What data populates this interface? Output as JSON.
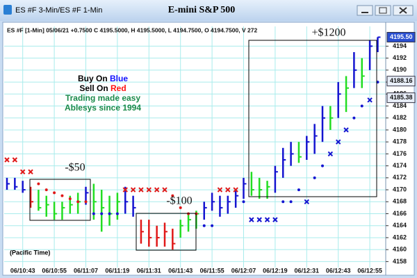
{
  "window_title": "ES #F 3-Min/ES #F 1-Min",
  "chart_data": {
    "type": "ohlc",
    "title": "E-mini S&P 500",
    "info": "ES #F [1-Min] 05/06/21 +0.7500 C 4195.5000, H 4195.5000, L 4194.7500, O 4194.7500, V 272",
    "time_zone": "(Pacific Time)",
    "legend_lines": [
      {
        "text": "Buy On",
        "highlight": "Blue",
        "color": "#1010ff"
      },
      {
        "text": "Sell On",
        "highlight": "Red",
        "color": "#ff1010"
      },
      {
        "text": "Trading made easy",
        "color": "#1a8a4a"
      },
      {
        "text": "Ablesys since 1994",
        "color": "#1a8a4a"
      }
    ],
    "annotations": [
      "-$50",
      "-$100",
      "+$1200"
    ],
    "categories": [
      null,
      null,
      "06/10:43",
      null,
      null,
      null,
      "06/10:55",
      null,
      null,
      null,
      "06/11:07",
      null,
      null,
      null,
      "06/11:19",
      null,
      null,
      null,
      "06/11:31",
      null,
      null,
      null,
      "06/11:43",
      null,
      null,
      null,
      "06/11:55",
      null,
      null,
      null,
      "06/12:07",
      null,
      null,
      null,
      "06/12:19",
      null,
      null,
      null,
      "06/12:31",
      null,
      null,
      null,
      "06/12:43",
      null,
      null,
      null,
      "06/12:55",
      null
    ],
    "high": [
      4172,
      4172,
      4171.5,
      4170.5,
      4170,
      4169,
      4168,
      4168,
      4169,
      4169.5,
      4170.5,
      4171,
      4170,
      4169,
      4169.5,
      4170.5,
      4169,
      4165,
      4165,
      4164,
      4164.5,
      4163.5,
      4165,
      4166,
      4166.5,
      4168,
      4169.5,
      4169,
      4169,
      4170,
      4172,
      4173,
      4172,
      4171.5,
      4174,
      4177,
      4178,
      4178,
      4179,
      4181,
      4184,
      4184,
      4188,
      4189,
      4193,
      4192,
      4195,
      4195.5
    ],
    "low": [
      4170,
      4170,
      4169.5,
      4167,
      4166.5,
      4165.5,
      4165,
      4165,
      4166,
      4166,
      4167.5,
      4165,
      4163,
      4164,
      4165,
      4166,
      4165.5,
      4161,
      4160.5,
      4160.5,
      4160.5,
      4160,
      4162,
      4163,
      4163.5,
      4165,
      4166.5,
      4165.5,
      4166,
      4167,
      4168.5,
      4169,
      4168.5,
      4168.5,
      4169.5,
      4172,
      4174,
      4174.5,
      4175,
      4176,
      4178,
      4180,
      4182,
      4183,
      4187,
      4187,
      4190,
      4193
    ],
    "close": [
      4171,
      4170.5,
      4170,
      4168,
      4167,
      4167.5,
      4166,
      4167,
      4167.5,
      4168,
      4169.5,
      4168,
      4167,
      4166,
      4168,
      4168,
      4167,
      4163,
      4162,
      4162,
      4163,
      4161,
      4164,
      4165,
      4166,
      4167,
      4168,
      4167,
      4168,
      4169,
      4171,
      4170,
      4170,
      4170.5,
      4173,
      4175,
      4176,
      4175.5,
      4178,
      4179,
      4182,
      4182,
      4186,
      4187,
      4190,
      4189,
      4194,
      4195.5
    ],
    "signal": [
      "blue",
      "blue",
      "blue",
      "red",
      "green",
      "green",
      "green",
      "green",
      "green",
      "green",
      "blue",
      "green",
      "green",
      "green",
      "green",
      "blue",
      "blue",
      "red",
      "red",
      "red",
      "red",
      "red",
      "green",
      "green",
      "green",
      "blue",
      "blue",
      "blue",
      "blue",
      "blue",
      "blue",
      "green",
      "green",
      "green",
      "blue",
      "blue",
      "blue",
      "green",
      "blue",
      "blue",
      "blue",
      "green",
      "blue",
      "green",
      "blue",
      "green",
      "blue",
      "blue"
    ],
    "stops": [
      4175,
      4175,
      4173,
      4173,
      4171,
      4170,
      4169.5,
      4169,
      4168.5,
      4168,
      4168,
      4166,
      4166,
      4166,
      4166,
      4170,
      4170,
      4170,
      4170,
      4170,
      4170,
      4169,
      4167,
      4166,
      4166,
      4164,
      4164,
      4170,
      4170,
      4170,
      4168,
      4165,
      4165,
      4165,
      4165,
      4168,
      4168,
      4170,
      4168,
      4172,
      4174,
      4176,
      4178,
      4180,
      4182,
      4184,
      4185,
      4188
    ],
    "stop_marks": [
      "red-x",
      "red-x",
      "red-x",
      "red-x",
      "red-dot",
      "red-dot",
      "red-dot",
      "red-dot",
      "red-dot",
      "red-dot",
      "red-dot",
      "blue-dot",
      "blue-dot",
      "blue-dot",
      "blue-dot",
      "red-x",
      "red-x",
      "red-x",
      "red-x",
      "red-x",
      "red-x",
      "red-dot",
      "red-dot",
      "red-dot",
      "red-dot",
      "blue-dot",
      "blue-dot",
      "red-x",
      "red-x",
      "red-x",
      "blue-dot",
      "blue-x",
      "blue-x",
      "blue-x",
      "blue-x",
      "blue-dot",
      "blue-dot",
      "blue-dot",
      "blue-x",
      "blue-dot",
      "blue-dot",
      "blue-x",
      "blue-x",
      "blue-x",
      "blue-dot",
      "blue-dot",
      "blue-x",
      "blue-dot"
    ],
    "colors": {
      "blue": "#1414d0",
      "green": "#22dd22",
      "red": "#e01818"
    },
    "price_tags": [
      {
        "value": 4195.5,
        "label": "4195.50"
      },
      {
        "value": 4188.16,
        "label": "4188.16"
      },
      {
        "value": 4185.38,
        "label": "4185.38"
      }
    ],
    "ylim": [
      4157,
      4197.3
    ],
    "yticks": [
      4158,
      4160,
      4162,
      4164,
      4166,
      4168,
      4170,
      4172,
      4174,
      4176,
      4178,
      4180,
      4182,
      4184,
      4186,
      4188,
      4190,
      4192,
      4194
    ],
    "grid": true
  }
}
